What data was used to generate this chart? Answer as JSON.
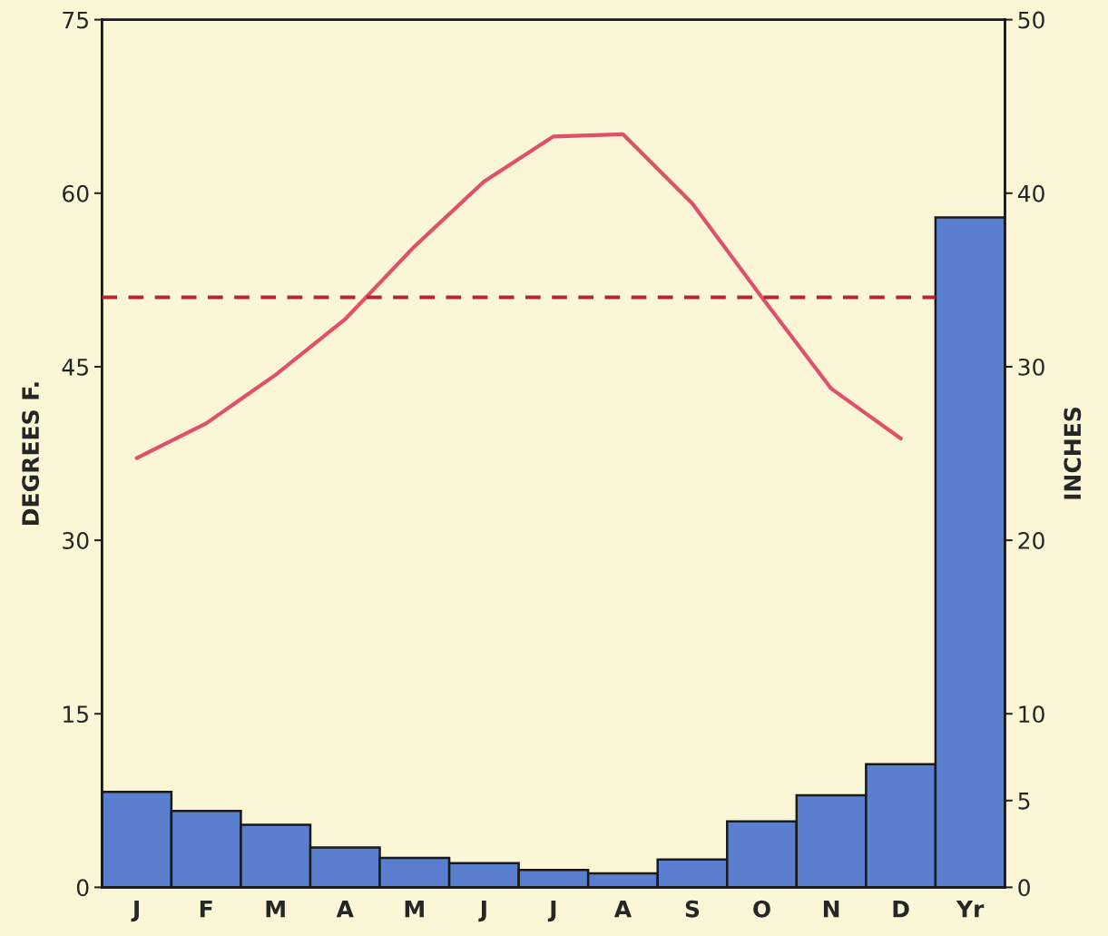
{
  "chart_data": {
    "type": "bar",
    "xlabel": null,
    "ylabel": "DEGREES F.",
    "y2label": "INCHES",
    "categories": [
      "J",
      "F",
      "M",
      "A",
      "M",
      "J",
      "J",
      "A",
      "S",
      "O",
      "N",
      "D",
      "Yr"
    ],
    "series": [
      {
        "axis": "y2",
        "color": "#5b7fcf",
        "values": [
          5.5,
          4.4,
          3.6,
          2.3,
          1.7,
          1.4,
          1.0,
          0.8,
          1.6,
          3.8,
          5.3,
          7.1,
          38.6
        ]
      },
      {
        "type": "line",
        "axis": "y",
        "color": "#e0506a",
        "values": [
          37.1,
          40.1,
          44.3,
          49.1,
          55.4,
          61.0,
          64.9,
          65.1,
          59.1,
          51.0,
          43.1,
          38.8,
          null
        ]
      }
    ],
    "ref_lines": [
      {
        "axis": "y",
        "value": 51,
        "color": "#b02838",
        "line_style": "dashed"
      }
    ],
    "ylim": [
      0,
      75
    ],
    "yticks": [
      0,
      15,
      30,
      45,
      60,
      75
    ],
    "y2lim": [
      0,
      50
    ],
    "y2ticks": [
      0,
      5,
      10,
      20,
      30,
      40,
      50
    ],
    "grid": false,
    "legend": false,
    "marker": "none",
    "line_style": "solid"
  }
}
